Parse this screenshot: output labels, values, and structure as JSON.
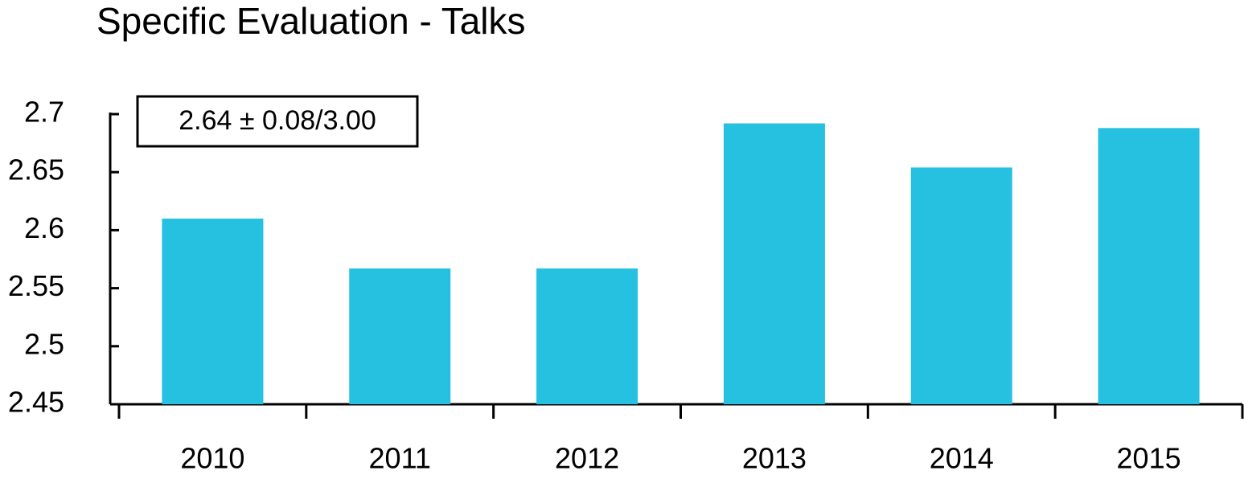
{
  "chart_data": {
    "type": "bar",
    "title": "Specific Evaluation - Talks",
    "annotation": "2.64 ± 0.08/3.00",
    "categories": [
      "2010",
      "2011",
      "2012",
      "2013",
      "2014",
      "2015"
    ],
    "values": [
      2.61,
      2.567,
      2.567,
      2.692,
      2.654,
      2.688
    ],
    "color": "#26c0e0",
    "ylim": [
      2.45,
      2.7
    ],
    "yticks": [
      2.45,
      2.5,
      2.55,
      2.6,
      2.65,
      2.7
    ],
    "grid": false
  }
}
